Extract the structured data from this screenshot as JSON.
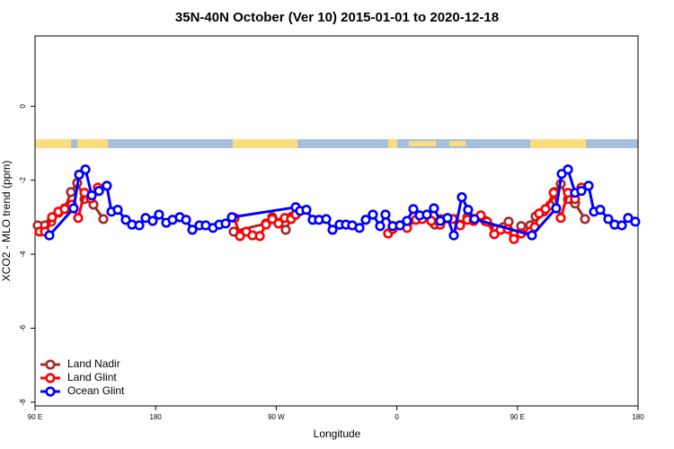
{
  "chart_data": {
    "type": "line",
    "title": "35N-40N October (Ver 10)   2015-01-01 to 2020-12-18",
    "x_label": "Longitude",
    "y_label": "XCO2 - MLO trend (ppm)",
    "xlim": [
      90,
      540
    ],
    "xticks": [
      {
        "value": 90,
        "label": "90 E"
      },
      180,
      {
        "value": 270,
        "label": "90 W"
      },
      {
        "value": 360,
        "label": "0"
      },
      {
        "value": 450,
        "label": "90 E"
      },
      {
        "value": 540,
        "label": "180"
      }
    ],
    "ylim": [
      -8.1,
      1.9
    ],
    "yticks": [
      0,
      -2,
      -4,
      -6,
      -8
    ],
    "legend": "bottom-left",
    "series": [
      {
        "name": "Land Nadir",
        "color": "#a52a2a",
        "x": [
          92.0,
          97.4,
          102.1,
          107.4,
          112.1,
          116.8,
          121.5,
          126.9,
          133.6,
          141.0,
          null,
          238.2,
          262.3,
          267.0,
          271.7,
          277.1,
          281.8,
          null,
          388.4,
          393.1,
          402.5,
          407.2,
          412.6,
          417.9,
          425.9,
          434.0,
          439.4,
          443.4,
          447.4,
          452.8,
          459.5,
          463.5,
          469.6,
          474.3,
          477.6,
          482.3,
          487.7,
          493.0,
          500.4
        ],
        "values": [
          -3.22,
          -3.22,
          -3.12,
          -2.88,
          -2.76,
          -2.32,
          -2.07,
          -2.51,
          -2.66,
          -3.05,
          null,
          -3.39,
          -3.17,
          -3.0,
          -3.15,
          -3.34,
          -2.98,
          null,
          -3.2,
          -3.05,
          -3.05,
          -3.2,
          -3.0,
          -3.07,
          -3.1,
          -3.32,
          -3.27,
          -3.12,
          -3.46,
          -3.24,
          -3.22,
          -2.98,
          -2.85,
          -2.68,
          -2.32,
          -2.1,
          -2.51,
          -2.63,
          -3.05
        ]
      },
      {
        "name": "Land Glint",
        "color": "#ff0000",
        "x": [
          93.4,
          97.4,
          102.7,
          107.4,
          112.1,
          117.5,
          122.2,
          126.9,
          131.6,
          136.9,
          null,
          238.9,
          242.9,
          247.6,
          252.3,
          257.7,
          262.3,
          267.0,
          271.7,
          276.4,
          281.1,
          284.5,
          null,
          353.5,
          356.9,
          362.3,
          367.6,
          374.3,
          379.0,
          385.7,
          392.4,
          401.8,
          407.2,
          412.6,
          417.3,
          422.6,
          427.3,
          432.7,
          437.4,
          442.7,
          447.4,
          452.8,
          459.5,
          462.9,
          466.2,
          470.9,
          477.0,
          482.3,
          487.7,
          493.0,
          497.7
        ],
        "values": [
          -3.39,
          -3.39,
          -3.0,
          -2.85,
          -2.78,
          -2.66,
          -3.02,
          -2.34,
          -2.49,
          -2.2,
          null,
          -3.02,
          -3.51,
          -3.39,
          -3.49,
          -3.51,
          -3.2,
          -3.05,
          -3.17,
          -3.02,
          -3.05,
          -2.93,
          null,
          -3.44,
          -3.32,
          -3.22,
          -3.29,
          -3.07,
          -3.05,
          -3.1,
          -3.2,
          -3.05,
          -3.22,
          -3.07,
          -3.1,
          -2.95,
          -3.12,
          -3.46,
          -3.34,
          -3.32,
          -3.59,
          -3.44,
          -3.39,
          -3.27,
          -2.9,
          -2.78,
          -2.34,
          -3.02,
          -2.34,
          -2.51,
          -2.2
        ]
      },
      {
        "name": "Ocean Glint",
        "color": "#0000ff",
        "x": [
          100.7,
          118.8,
          122.9,
          127.6,
          132.3,
          137.7,
          143.6,
          147.0,
          151.7,
          157.7,
          162.4,
          167.8,
          172.5,
          177.8,
          182.5,
          187.9,
          192.6,
          198.0,
          202.7,
          207.4,
          212.7,
          217.4,
          222.8,
          227.5,
          232.2,
          236.9,
          284.5,
          287.8,
          292.5,
          297.2,
          301.9,
          307.3,
          312.0,
          317.3,
          322.0,
          326.7,
          332.1,
          336.8,
          342.1,
          347.5,
          351.5,
          356.9,
          362.3,
          367.6,
          372.3,
          377.0,
          382.4,
          387.7,
          392.4,
          397.8,
          402.5,
          408.5,
          413.2,
          417.9,
          460.8,
          478.9,
          483.0,
          487.7,
          493.0,
          497.7,
          503.1,
          507.1,
          511.8,
          517.8,
          522.5,
          527.9,
          532.6,
          537.9
        ],
        "values": [
          -3.49,
          -2.76,
          -1.85,
          -1.71,
          -2.41,
          -2.29,
          -2.15,
          -2.85,
          -2.8,
          -3.07,
          -3.2,
          -3.22,
          -3.02,
          -3.1,
          -2.93,
          -3.15,
          -3.07,
          -3.0,
          -3.07,
          -3.34,
          -3.22,
          -3.22,
          -3.29,
          -3.2,
          -3.17,
          -3.0,
          -2.73,
          -2.83,
          -2.8,
          -3.07,
          -3.07,
          -3.05,
          -3.34,
          -3.2,
          -3.2,
          -3.22,
          -3.29,
          -3.07,
          -2.93,
          -3.24,
          -2.93,
          -3.24,
          -3.22,
          -3.1,
          -2.78,
          -2.95,
          -2.93,
          -2.76,
          -3.1,
          -3.02,
          -3.49,
          -2.46,
          -2.8,
          -3.05,
          -3.49,
          -2.76,
          -1.83,
          -1.71,
          -2.34,
          -2.29,
          -2.15,
          -2.85,
          -2.8,
          -3.05,
          -3.2,
          -3.22,
          -3.02,
          -3.12
        ]
      }
    ]
  }
}
